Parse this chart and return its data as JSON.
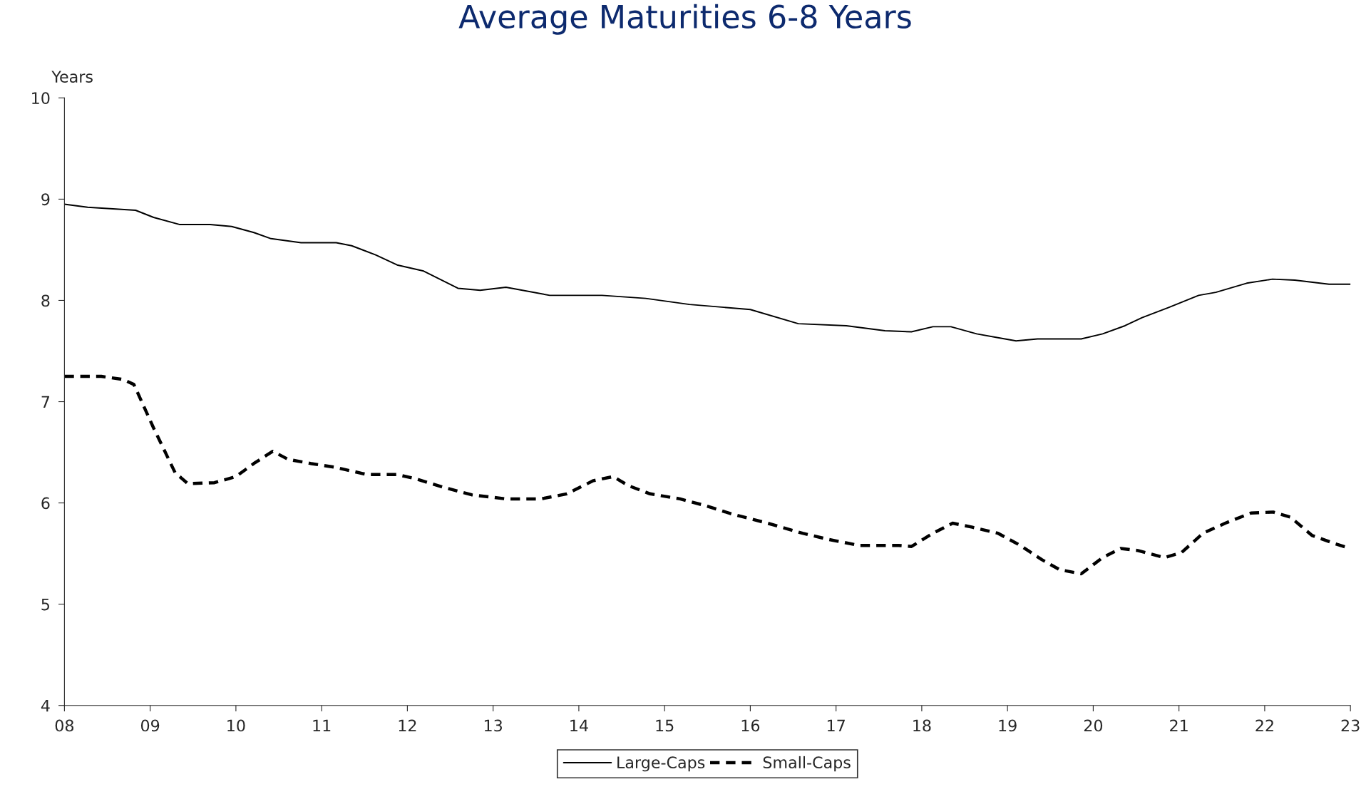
{
  "chart_data": {
    "type": "line",
    "title": "Average Maturities 6-8 Years",
    "ylabel": "Years",
    "xlim": [
      8,
      23
    ],
    "xticks": [
      {
        "value": 8,
        "label": "08"
      },
      {
        "value": 9,
        "label": "09"
      },
      10,
      11,
      12,
      13,
      14,
      15,
      16,
      17,
      18,
      19,
      20,
      21,
      22,
      23
    ],
    "ylim": [
      4,
      10
    ],
    "yticks": [
      4,
      5,
      6,
      7,
      8,
      9,
      10
    ],
    "grid": false,
    "legend": "bottom",
    "series": [
      {
        "name": "Large-Caps",
        "color": "#000000",
        "line_style": "solid",
        "x": [
          8.0,
          8.27,
          8.83,
          9.04,
          9.34,
          9.7,
          9.95,
          10.21,
          10.41,
          10.76,
          11.17,
          11.35,
          11.63,
          11.88,
          12.19,
          12.59,
          12.85,
          13.15,
          13.66,
          14.27,
          14.78,
          15.29,
          16.0,
          16.56,
          17.12,
          17.57,
          17.88,
          18.13,
          18.34,
          18.64,
          18.9,
          19.1,
          19.35,
          19.86,
          20.11,
          20.37,
          20.57,
          20.88,
          21.23,
          21.43,
          21.79,
          22.09,
          22.35,
          22.75,
          23.0
        ],
        "values": [
          8.95,
          8.92,
          8.89,
          8.82,
          8.75,
          8.75,
          8.73,
          8.67,
          8.61,
          8.57,
          8.57,
          8.54,
          8.45,
          8.35,
          8.29,
          8.12,
          8.1,
          8.13,
          8.05,
          8.05,
          8.02,
          7.96,
          7.91,
          7.77,
          7.75,
          7.7,
          7.69,
          7.74,
          7.74,
          7.67,
          7.63,
          7.6,
          7.62,
          7.62,
          7.67,
          7.75,
          7.83,
          7.93,
          8.05,
          8.08,
          8.17,
          8.21,
          8.2,
          8.16,
          8.16
        ]
      },
      {
        "name": "Small-Caps",
        "color": "#000000",
        "line_style": "dashed",
        "x": [
          8.0,
          8.43,
          8.68,
          8.81,
          9.04,
          9.29,
          9.44,
          9.75,
          10.0,
          10.21,
          10.43,
          10.61,
          10.87,
          11.17,
          11.53,
          11.88,
          12.09,
          12.44,
          12.75,
          13.15,
          13.56,
          13.86,
          14.17,
          14.4,
          14.58,
          14.83,
          15.18,
          15.49,
          15.79,
          16.2,
          16.61,
          16.91,
          17.27,
          17.73,
          17.88,
          18.13,
          18.36,
          18.59,
          18.89,
          19.15,
          19.4,
          19.61,
          19.86,
          20.11,
          20.32,
          20.52,
          20.83,
          21.03,
          21.28,
          21.54,
          21.84,
          22.1,
          22.3,
          22.55,
          22.81,
          23.0
        ],
        "values": [
          7.25,
          7.25,
          7.22,
          7.17,
          6.74,
          6.3,
          6.19,
          6.2,
          6.26,
          6.39,
          6.51,
          6.43,
          6.39,
          6.35,
          6.28,
          6.28,
          6.24,
          6.15,
          6.08,
          6.04,
          6.04,
          6.09,
          6.22,
          6.26,
          6.17,
          6.09,
          6.04,
          5.97,
          5.89,
          5.8,
          5.7,
          5.64,
          5.58,
          5.58,
          5.57,
          5.7,
          5.8,
          5.76,
          5.7,
          5.58,
          5.44,
          5.34,
          5.3,
          5.46,
          5.55,
          5.53,
          5.46,
          5.51,
          5.7,
          5.8,
          5.9,
          5.91,
          5.86,
          5.68,
          5.6,
          5.55
        ]
      }
    ]
  }
}
